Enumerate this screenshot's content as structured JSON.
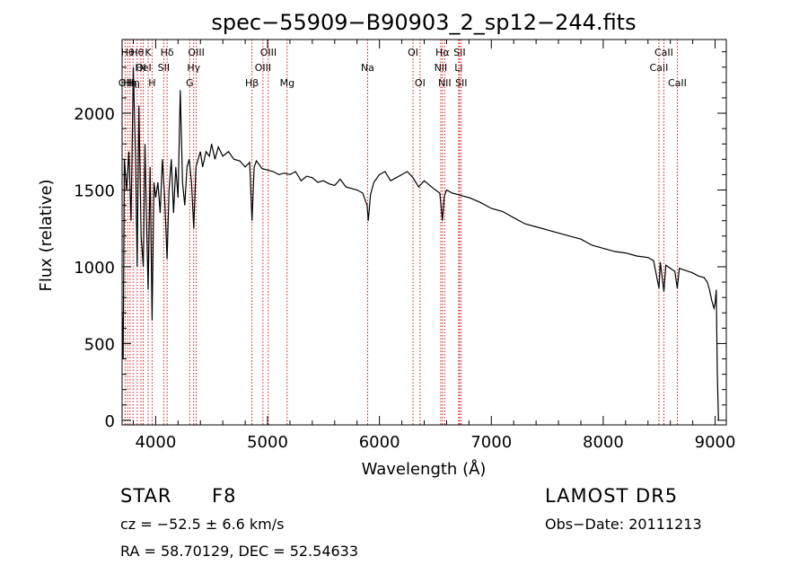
{
  "chart_data": {
    "type": "line",
    "title": "spec−55909−B90903_2_sp12−244.fits",
    "xlabel": "Wavelength (Å)",
    "ylabel": "Flux (relative)",
    "xlim": [
      3700,
      9100
    ],
    "ylim": [
      -30,
      2480
    ],
    "x_ticks": [
      4000,
      5000,
      6000,
      7000,
      8000,
      9000
    ],
    "y_ticks": [
      0,
      500,
      1000,
      1500,
      2000
    ],
    "x_tick_labels": [
      "4000",
      "5000",
      "6000",
      "7000",
      "8000",
      "9000"
    ],
    "y_tick_labels": [
      "0",
      "500",
      "1000",
      "1500",
      "2000"
    ],
    "grid": false,
    "line_color": "#000000",
    "marker_color": "#cc0000",
    "series": [
      {
        "x": [
          3700,
          3710,
          3720,
          3740,
          3760,
          3780,
          3800,
          3820,
          3835,
          3850,
          3870,
          3889,
          3905,
          3920,
          3933,
          3950,
          3968,
          3985,
          4000,
          4020,
          4040,
          4060,
          4080,
          4102,
          4120,
          4140,
          4160,
          4180,
          4200,
          4220,
          4240,
          4260,
          4280,
          4300,
          4320,
          4340,
          4360,
          4380,
          4400,
          4420,
          4450,
          4480,
          4500,
          4530,
          4560,
          4600,
          4650,
          4700,
          4750,
          4800,
          4840,
          4861,
          4880,
          4900,
          4950,
          5000,
          5050,
          5100,
          5150,
          5200,
          5250,
          5300,
          5350,
          5400,
          5450,
          5500,
          5550,
          5600,
          5650,
          5700,
          5750,
          5800,
          5850,
          5890,
          5900,
          5920,
          5950,
          6000,
          6050,
          6100,
          6150,
          6200,
          6250,
          6300,
          6350,
          6400,
          6450,
          6500,
          6540,
          6563,
          6580,
          6600,
          6650,
          6700,
          6750,
          6800,
          6900,
          7000,
          7100,
          7200,
          7300,
          7400,
          7500,
          7600,
          7700,
          7800,
          7900,
          8000,
          8100,
          8200,
          8300,
          8400,
          8450,
          8498,
          8510,
          8542,
          8560,
          8600,
          8640,
          8662,
          8680,
          8720,
          8760,
          8800,
          8850,
          8900,
          8930,
          8950,
          8970,
          8990,
          9000,
          9010,
          9020,
          9030
        ],
        "y": [
          700,
          400,
          1700,
          1500,
          1750,
          1300,
          2300,
          1700,
          1000,
          2050,
          1200,
          1000,
          1800,
          1250,
          850,
          1650,
          650,
          1550,
          1450,
          1550,
          1350,
          1700,
          1450,
          1050,
          1500,
          1700,
          1350,
          1650,
          1450,
          2150,
          1550,
          1400,
          1650,
          1700,
          1550,
          1250,
          1650,
          1700,
          1750,
          1650,
          1750,
          1720,
          1800,
          1700,
          1780,
          1720,
          1750,
          1700,
          1690,
          1650,
          1680,
          1300,
          1650,
          1690,
          1640,
          1630,
          1620,
          1600,
          1610,
          1600,
          1620,
          1560,
          1590,
          1580,
          1550,
          1560,
          1540,
          1530,
          1570,
          1520,
          1510,
          1500,
          1480,
          1400,
          1300,
          1470,
          1550,
          1600,
          1620,
          1560,
          1580,
          1600,
          1620,
          1580,
          1520,
          1560,
          1530,
          1500,
          1480,
          1300,
          1460,
          1500,
          1480,
          1470,
          1460,
          1450,
          1420,
          1380,
          1360,
          1320,
          1280,
          1260,
          1240,
          1220,
          1200,
          1180,
          1140,
          1120,
          1100,
          1090,
          1070,
          1060,
          1040,
          860,
          1030,
          840,
          1010,
          990,
          970,
          860,
          990,
          980,
          970,
          960,
          940,
          930,
          900,
          850,
          780,
          730,
          760,
          850,
          300,
          0
        ]
      }
    ],
    "line_markers": [
      {
        "x": 3727,
        "label": "OII",
        "row": 3
      },
      {
        "x": 3750,
        "label": "Hθ",
        "row": 1
      },
      {
        "x": 3771,
        "label": "Hη",
        "row": 3
      },
      {
        "x": 3798,
        "label": "Hη",
        "row": 3
      },
      {
        "x": 3835,
        "label": "Hθ",
        "row": 1
      },
      {
        "x": 3868,
        "label": "OI",
        "row": 2
      },
      {
        "x": 3889,
        "label": "HeI",
        "row": 2
      },
      {
        "x": 3933,
        "label": "K",
        "row": 1
      },
      {
        "x": 3968,
        "label": "H",
        "row": 3
      },
      {
        "x": 4072,
        "label": "SII",
        "row": 2
      },
      {
        "x": 4102,
        "label": "Hδ",
        "row": 1
      },
      {
        "x": 4304,
        "label": "G",
        "row": 3
      },
      {
        "x": 4340,
        "label": "Hγ",
        "row": 2
      },
      {
        "x": 4363,
        "label": "OIII",
        "row": 1
      },
      {
        "x": 4861,
        "label": "Hβ",
        "row": 3
      },
      {
        "x": 4959,
        "label": "OIII",
        "row": 2
      },
      {
        "x": 5007,
        "label": "OIII",
        "row": 1
      },
      {
        "x": 5175,
        "label": "Mg",
        "row": 3
      },
      {
        "x": 5894,
        "label": "Na",
        "row": 2
      },
      {
        "x": 6300,
        "label": "OI",
        "row": 1
      },
      {
        "x": 6363,
        "label": "OI",
        "row": 3
      },
      {
        "x": 6548,
        "label": "NII",
        "row": 2
      },
      {
        "x": 6563,
        "label": "Hα",
        "row": 1
      },
      {
        "x": 6583,
        "label": "NII",
        "row": 3
      },
      {
        "x": 6708,
        "label": "Li",
        "row": 2
      },
      {
        "x": 6716,
        "label": "SII",
        "row": 1
      },
      {
        "x": 6731,
        "label": "SII",
        "row": 3
      },
      {
        "x": 8498,
        "label": "CaII",
        "row": 2
      },
      {
        "x": 8542,
        "label": "CaII",
        "row": 1
      },
      {
        "x": 8662,
        "label": "CaII",
        "row": 3
      }
    ]
  },
  "footer": {
    "object_class": "STAR",
    "subclass": "F8",
    "survey": "LAMOST DR5",
    "redshift_line": "cz = −52.5 ± 6.6 km/s",
    "obs_date": "Obs−Date: 20111213",
    "coords": "RA =  58.70129, DEC =  52.54633"
  }
}
